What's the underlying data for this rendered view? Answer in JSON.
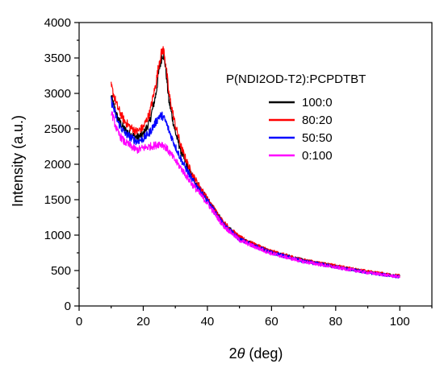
{
  "chart_data": {
    "type": "line",
    "xlabel_prefix": "2",
    "xlabel_symbol": "θ",
    "xlabel_suffix": " (deg)",
    "ylabel": "Intensity (a.u.)",
    "xlim": [
      0,
      110
    ],
    "ylim": [
      0,
      4000
    ],
    "x_ticks": [
      "0",
      "20",
      "40",
      "60",
      "80",
      "100"
    ],
    "y_ticks": [
      "0",
      "500",
      "1000",
      "1500",
      "2000",
      "2500",
      "3000",
      "3500",
      "4000"
    ],
    "legend_title": "P(NDI2OD-T2):PCPDTBT",
    "grid": false,
    "legend_position": "top-right",
    "series": [
      {
        "name": "100:0",
        "color": "#000000",
        "x": [
          10,
          12,
          14,
          16,
          18,
          20,
          22,
          24,
          25,
          26,
          26.5,
          27,
          28,
          30,
          32,
          35,
          40,
          45,
          50,
          55,
          60,
          70,
          80,
          90,
          100
        ],
        "y": [
          2950,
          2650,
          2500,
          2420,
          2380,
          2420,
          2600,
          3000,
          3350,
          3560,
          3520,
          3350,
          2900,
          2450,
          2150,
          1850,
          1500,
          1170,
          960,
          850,
          760,
          640,
          560,
          480,
          420
        ]
      },
      {
        "name": "80:20",
        "color": "#ff0000",
        "x": [
          10,
          12,
          14,
          16,
          18,
          20,
          22,
          24,
          25,
          26,
          26.5,
          27,
          28,
          30,
          32,
          35,
          40,
          45,
          50,
          55,
          60,
          70,
          80,
          90,
          100
        ],
        "y": [
          3100,
          2800,
          2620,
          2520,
          2460,
          2520,
          2720,
          3150,
          3450,
          3620,
          3580,
          3420,
          3000,
          2550,
          2220,
          1880,
          1510,
          1180,
          970,
          860,
          770,
          645,
          565,
          485,
          425
        ]
      },
      {
        "name": "50:50",
        "color": "#0000ff",
        "x": [
          10,
          12,
          14,
          16,
          18,
          20,
          22,
          24,
          25,
          26,
          27,
          28,
          30,
          32,
          35,
          40,
          45,
          50,
          55,
          60,
          70,
          80,
          90,
          100
        ],
        "y": [
          2900,
          2600,
          2450,
          2380,
          2320,
          2360,
          2450,
          2600,
          2680,
          2680,
          2600,
          2480,
          2250,
          2050,
          1800,
          1480,
          1150,
          940,
          840,
          750,
          630,
          550,
          470,
          410
        ]
      },
      {
        "name": "0:100",
        "color": "#ff00ff",
        "x": [
          10,
          12,
          14,
          16,
          18,
          20,
          22,
          24,
          25,
          26,
          27,
          28,
          30,
          32,
          35,
          40,
          45,
          50,
          55,
          60,
          70,
          80,
          90,
          100
        ],
        "y": [
          2750,
          2450,
          2320,
          2260,
          2200,
          2230,
          2250,
          2270,
          2290,
          2280,
          2240,
          2180,
          2050,
          1930,
          1730,
          1450,
          1130,
          930,
          830,
          740,
          625,
          545,
          470,
          410
        ]
      }
    ]
  }
}
